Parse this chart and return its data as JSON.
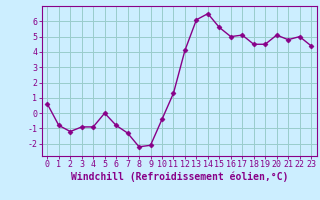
{
  "x": [
    0,
    1,
    2,
    3,
    4,
    5,
    6,
    7,
    8,
    9,
    10,
    11,
    12,
    13,
    14,
    15,
    16,
    17,
    18,
    19,
    20,
    21,
    22,
    23
  ],
  "y": [
    0.6,
    -0.8,
    -1.2,
    -0.9,
    -0.9,
    0.0,
    -0.8,
    -1.3,
    -2.2,
    -2.1,
    -0.4,
    1.3,
    4.1,
    6.1,
    6.5,
    5.6,
    5.0,
    5.1,
    4.5,
    4.5,
    5.1,
    4.8,
    5.0,
    4.4
  ],
  "line_color": "#880088",
  "marker": "D",
  "marker_size": 2.5,
  "bg_color": "#cceeff",
  "grid_color": "#99cccc",
  "xlabel": "Windchill (Refroidissement éolien,°C)",
  "xlim": [
    -0.5,
    23.5
  ],
  "ylim": [
    -2.8,
    7.0
  ],
  "yticks": [
    -2,
    -1,
    0,
    1,
    2,
    3,
    4,
    5,
    6
  ],
  "xticks": [
    0,
    1,
    2,
    3,
    4,
    5,
    6,
    7,
    8,
    9,
    10,
    11,
    12,
    13,
    14,
    15,
    16,
    17,
    18,
    19,
    20,
    21,
    22,
    23
  ],
  "tick_label_fontsize": 6.0,
  "xlabel_fontsize": 7.0,
  "line_width": 1.0
}
